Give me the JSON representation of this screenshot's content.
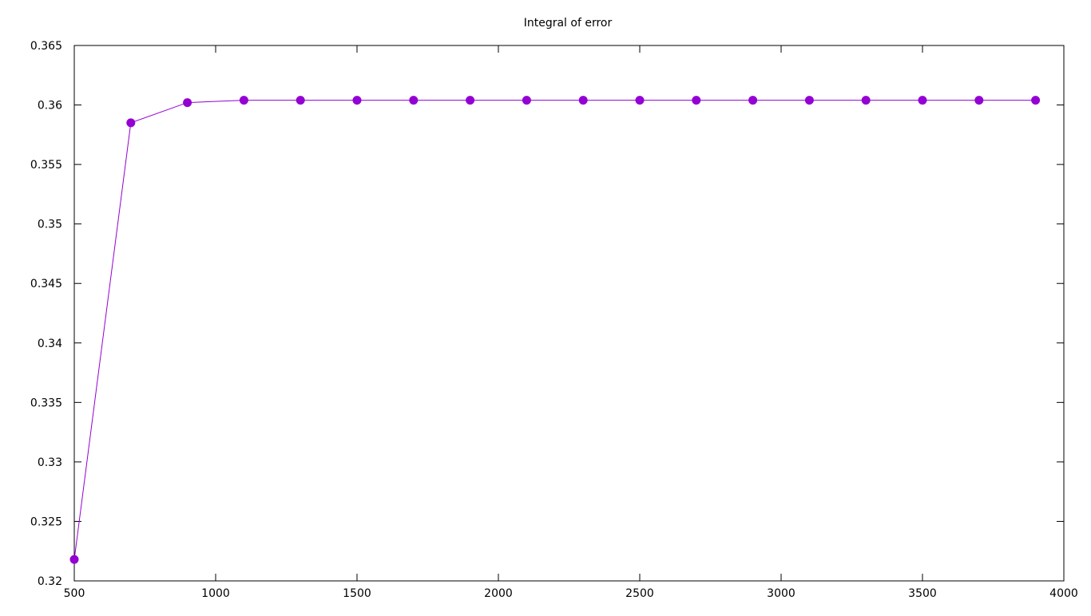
{
  "chart_data": {
    "type": "line",
    "title": "Integral of error",
    "xlabel": "",
    "ylabel": "",
    "xlim": [
      500,
      4000
    ],
    "ylim": [
      0.32,
      0.365
    ],
    "x_ticks": [
      500,
      1000,
      1500,
      2000,
      2500,
      3000,
      3500,
      4000
    ],
    "y_ticks": [
      0.32,
      0.325,
      0.33,
      0.335,
      0.34,
      0.345,
      0.35,
      0.355,
      0.36,
      0.365
    ],
    "x_tick_labels": [
      "500",
      "1000",
      "1500",
      "2000",
      "2500",
      "3000",
      "3500",
      "4000"
    ],
    "y_tick_labels": [
      "0.32",
      "0.325",
      "0.33",
      "0.335",
      "0.34",
      "0.345",
      "0.35",
      "0.355",
      "0.36",
      "0.365"
    ],
    "grid": false,
    "legend": "none",
    "series": [
      {
        "color": "#9400d3",
        "marker": "circle",
        "x": [
          500,
          700,
          900,
          1100,
          1300,
          1500,
          1700,
          1900,
          2100,
          2300,
          2500,
          2700,
          2900,
          3100,
          3300,
          3500,
          3700,
          3900
        ],
        "y": [
          0.3218,
          0.3585,
          0.3602,
          0.3604,
          0.3604,
          0.3604,
          0.3604,
          0.3604,
          0.3604,
          0.3604,
          0.3604,
          0.3604,
          0.3604,
          0.3604,
          0.3604,
          0.3604,
          0.3604,
          0.3604
        ]
      }
    ]
  }
}
